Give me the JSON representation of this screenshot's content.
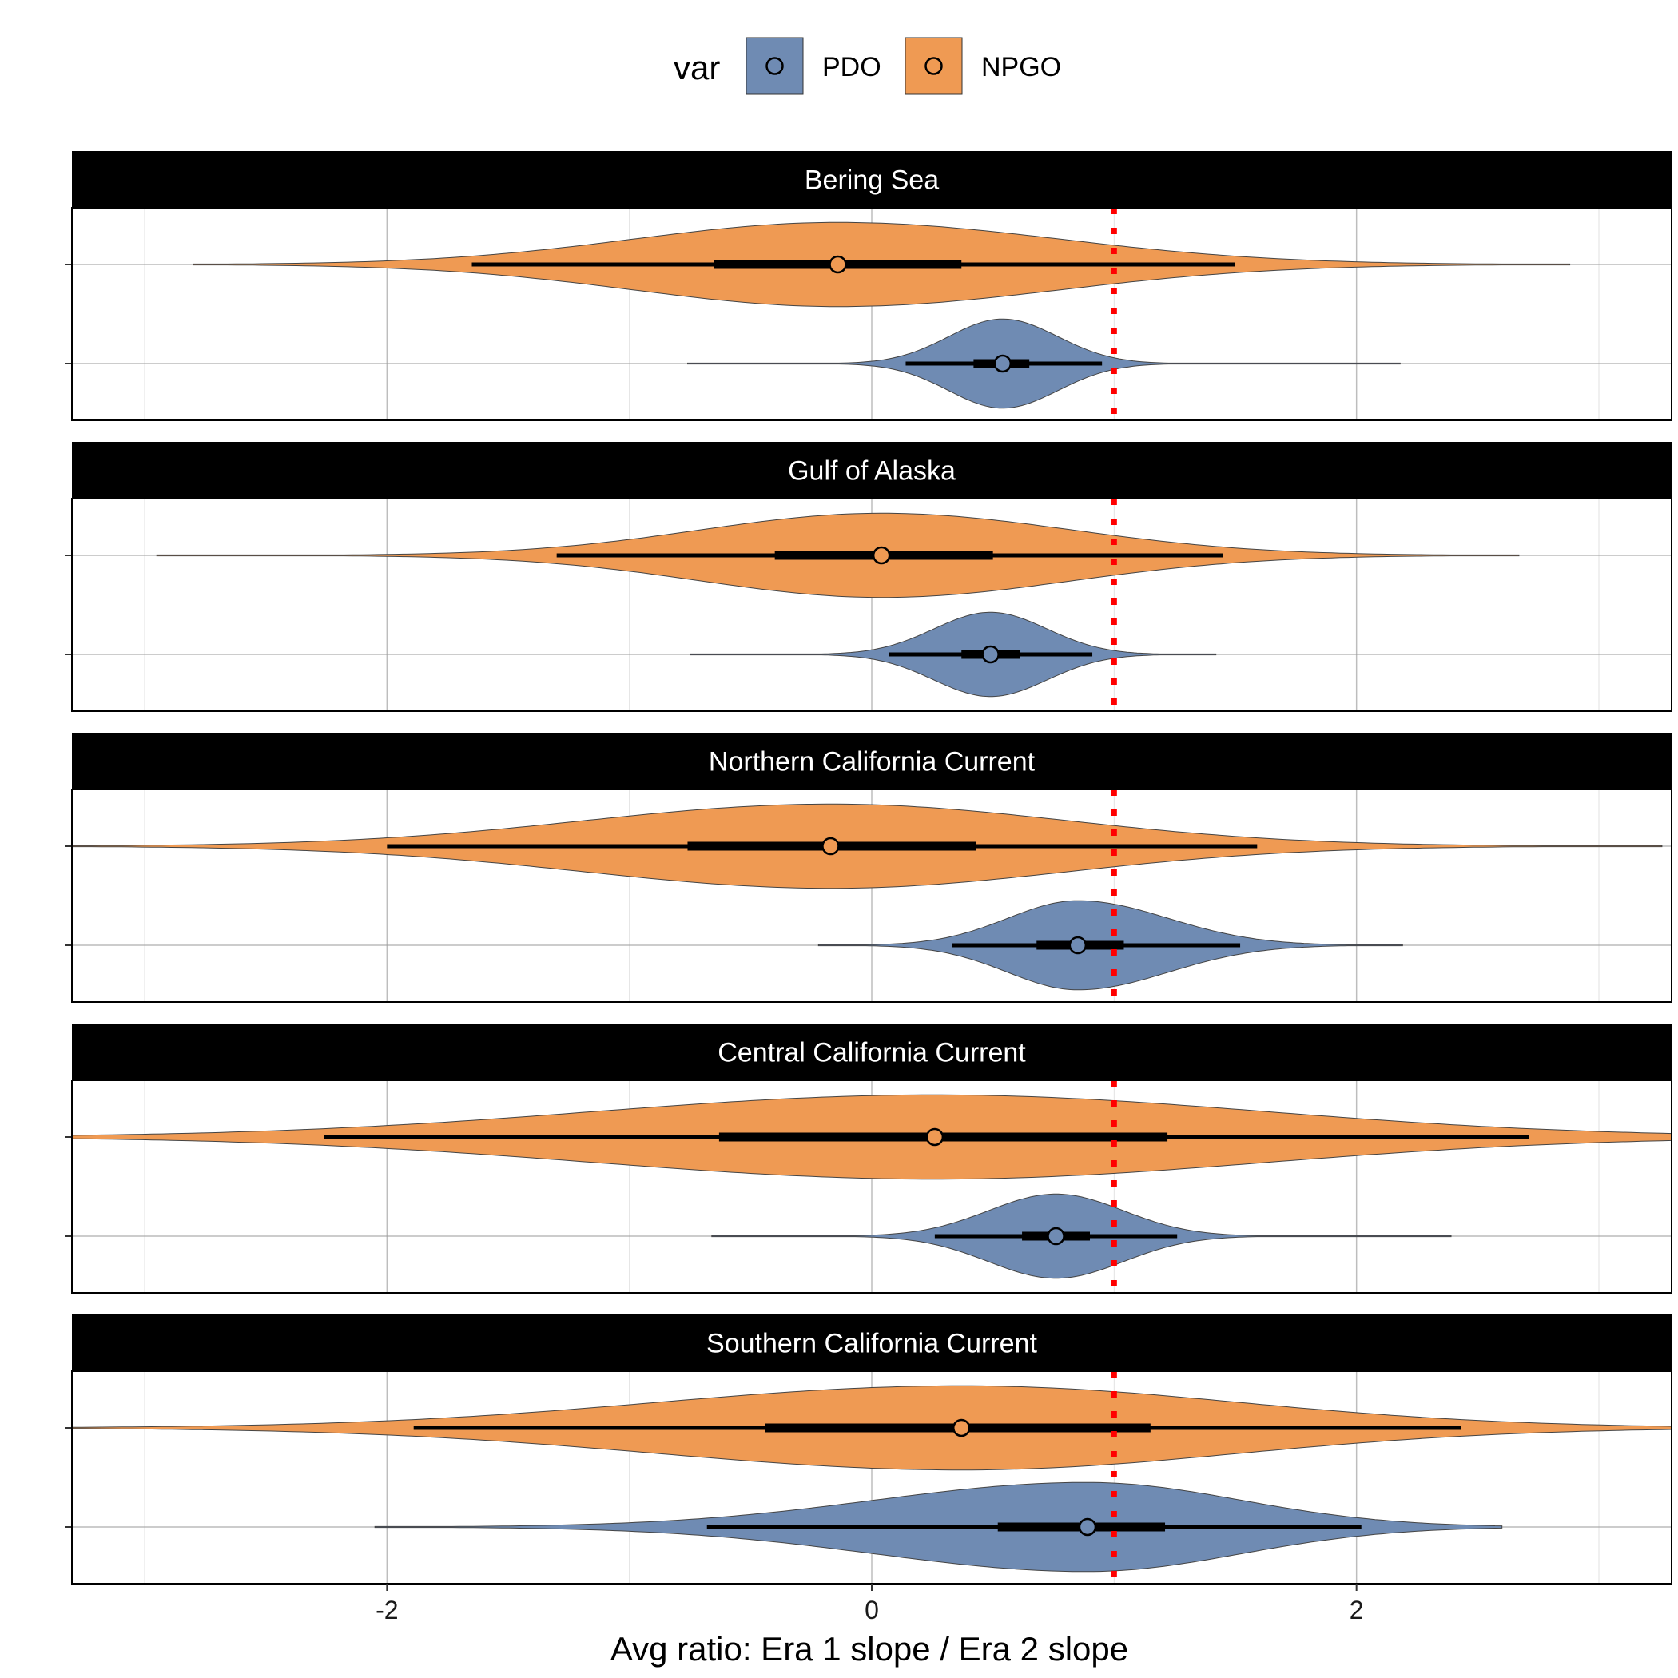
{
  "chart_data": {
    "type": "violin",
    "xlabel": "Avg ratio: Era 1 slope / Era 2 slope",
    "xlim": [
      -3.3,
      3.3
    ],
    "x_ticks": [
      -2,
      0,
      2
    ],
    "x_tick_labels": [
      "-2",
      "0",
      "2"
    ],
    "reference_line": {
      "x": 1,
      "style": "dotted",
      "color": "#ff0000"
    },
    "grid": true,
    "legend": {
      "title": "var",
      "position": "top",
      "entries": [
        {
          "name": "PDO",
          "color": "#6f8bb3"
        },
        {
          "name": "NPGO",
          "color": "#ef9a53"
        }
      ]
    },
    "panels": [
      {
        "title": "Bering Sea",
        "series": [
          {
            "name": "NPGO",
            "median": -0.14,
            "iqr": [
              -0.65,
              0.37
            ],
            "ci": [
              -1.65,
              1.5
            ],
            "range": [
              -2.8,
              2.88
            ],
            "peak_halfwidth": 0.85
          },
          {
            "name": "PDO",
            "median": 0.54,
            "iqr": [
              0.42,
              0.65
            ],
            "ci": [
              0.14,
              0.95
            ],
            "range": [
              -0.76,
              2.18
            ],
            "peak_halfwidth": 0.9
          }
        ]
      },
      {
        "title": "Gulf of Alaska",
        "series": [
          {
            "name": "NPGO",
            "median": 0.04,
            "iqr": [
              -0.4,
              0.5
            ],
            "ci": [
              -1.3,
              1.45
            ],
            "range": [
              -2.95,
              2.67
            ],
            "peak_halfwidth": 0.85
          },
          {
            "name": "PDO",
            "median": 0.49,
            "iqr": [
              0.37,
              0.61
            ],
            "ci": [
              0.07,
              0.91
            ],
            "range": [
              -0.75,
              1.42
            ],
            "peak_halfwidth": 0.85
          }
        ]
      },
      {
        "title": "Northern California Current",
        "series": [
          {
            "name": "NPGO",
            "median": -0.17,
            "iqr": [
              -0.76,
              0.43
            ],
            "ci": [
              -2.0,
              1.59
            ],
            "range": [
              -3.3,
              3.26
            ],
            "peak_halfwidth": 0.85
          },
          {
            "name": "PDO",
            "median": 0.85,
            "iqr": [
              0.68,
              1.04
            ],
            "ci": [
              0.33,
              1.52
            ],
            "range": [
              -0.22,
              2.19
            ],
            "peak_halfwidth": 0.9
          }
        ]
      },
      {
        "title": "Central California Current",
        "series": [
          {
            "name": "NPGO",
            "median": 0.26,
            "iqr": [
              -0.63,
              1.22
            ],
            "ci": [
              -2.26,
              2.71
            ],
            "range": [
              -3.3,
              3.3
            ],
            "peak_halfwidth": 0.85
          },
          {
            "name": "PDO",
            "median": 0.76,
            "iqr": [
              0.62,
              0.9
            ],
            "ci": [
              0.26,
              1.26
            ],
            "range": [
              -0.66,
              2.39
            ],
            "peak_halfwidth": 0.85
          }
        ]
      },
      {
        "title": "Southern California Current",
        "series": [
          {
            "name": "NPGO",
            "median": 0.37,
            "iqr": [
              -0.44,
              1.15
            ],
            "ci": [
              -1.89,
              2.43
            ],
            "range": [
              -3.3,
              3.3
            ],
            "peak_halfwidth": 0.85
          },
          {
            "name": "PDO",
            "median": 0.89,
            "iqr": [
              0.52,
              1.21
            ],
            "ci": [
              -0.68,
              2.02
            ],
            "range": [
              -2.05,
              2.6
            ],
            "peak_halfwidth": 0.9
          }
        ]
      }
    ]
  }
}
